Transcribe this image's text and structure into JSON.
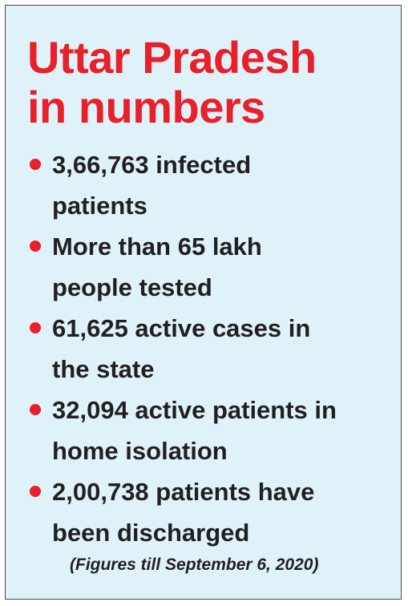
{
  "title": {
    "line1": "Uttar Pradesh",
    "line2": "in numbers"
  },
  "items": [
    {
      "line1": "3,66,763 infected",
      "line2": "patients"
    },
    {
      "line1": "More than 65 lakh",
      "line2": "people tested"
    },
    {
      "line1": "61,625 active cases in",
      "line2": "the state"
    },
    {
      "line1": "32,094 active patients in",
      "line2": "home isolation"
    },
    {
      "line1": "2,00,738 patients have",
      "line2": "been discharged"
    }
  ],
  "footnote": "(Figures till September 6, 2020)",
  "colors": {
    "accent": "#e8202a",
    "background": "#dff2fa",
    "text": "#231f20"
  }
}
